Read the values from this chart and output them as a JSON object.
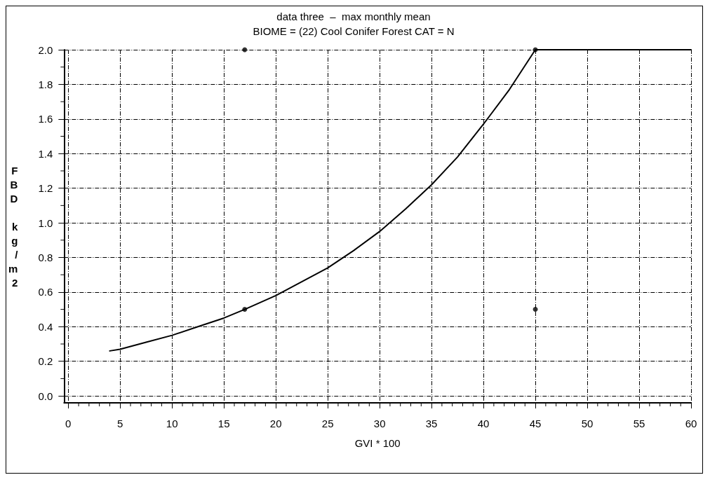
{
  "chart_data": {
    "type": "line",
    "title": "data three  –  max monthly mean",
    "subtitle": "BIOME = (22) Cool Conifer Forest CAT = N",
    "xlabel": "GVI * 100",
    "ylabel": "FBD kg/m2",
    "xlim": [
      -0.4,
      60
    ],
    "ylim": [
      -0.04,
      2.0
    ],
    "xticks": [
      0,
      5,
      10,
      15,
      20,
      25,
      30,
      35,
      40,
      45,
      50,
      55,
      60
    ],
    "yticks": [
      {
        "value": 0,
        "label": "0.0"
      },
      0.2,
      0.4,
      0.6,
      0.8,
      {
        "value": 1,
        "label": "1.0"
      },
      1.2,
      1.4,
      1.6,
      1.8,
      {
        "value": 2,
        "label": "2.0"
      }
    ],
    "grid": true,
    "series": [
      {
        "color": "#000000",
        "marker": "none",
        "line_style": "solid",
        "x": [
          4,
          5,
          7.5,
          10,
          12.5,
          15,
          17,
          20,
          22.5,
          25,
          27.5,
          30,
          32.5,
          35,
          37.5,
          40,
          42.5,
          45,
          50,
          55,
          60
        ],
        "values": [
          0.26,
          0.27,
          0.31,
          0.35,
          0.4,
          0.45,
          0.5,
          0.58,
          0.66,
          0.74,
          0.84,
          0.95,
          1.08,
          1.22,
          1.38,
          1.57,
          1.77,
          2.0,
          2.0,
          2.0,
          2.0
        ]
      },
      {
        "type": "scatter",
        "color": "#000000",
        "marker": "circle",
        "x": [
          17,
          17,
          45,
          45
        ],
        "values": [
          2.0,
          0.5,
          2.0,
          0.5
        ]
      }
    ]
  }
}
